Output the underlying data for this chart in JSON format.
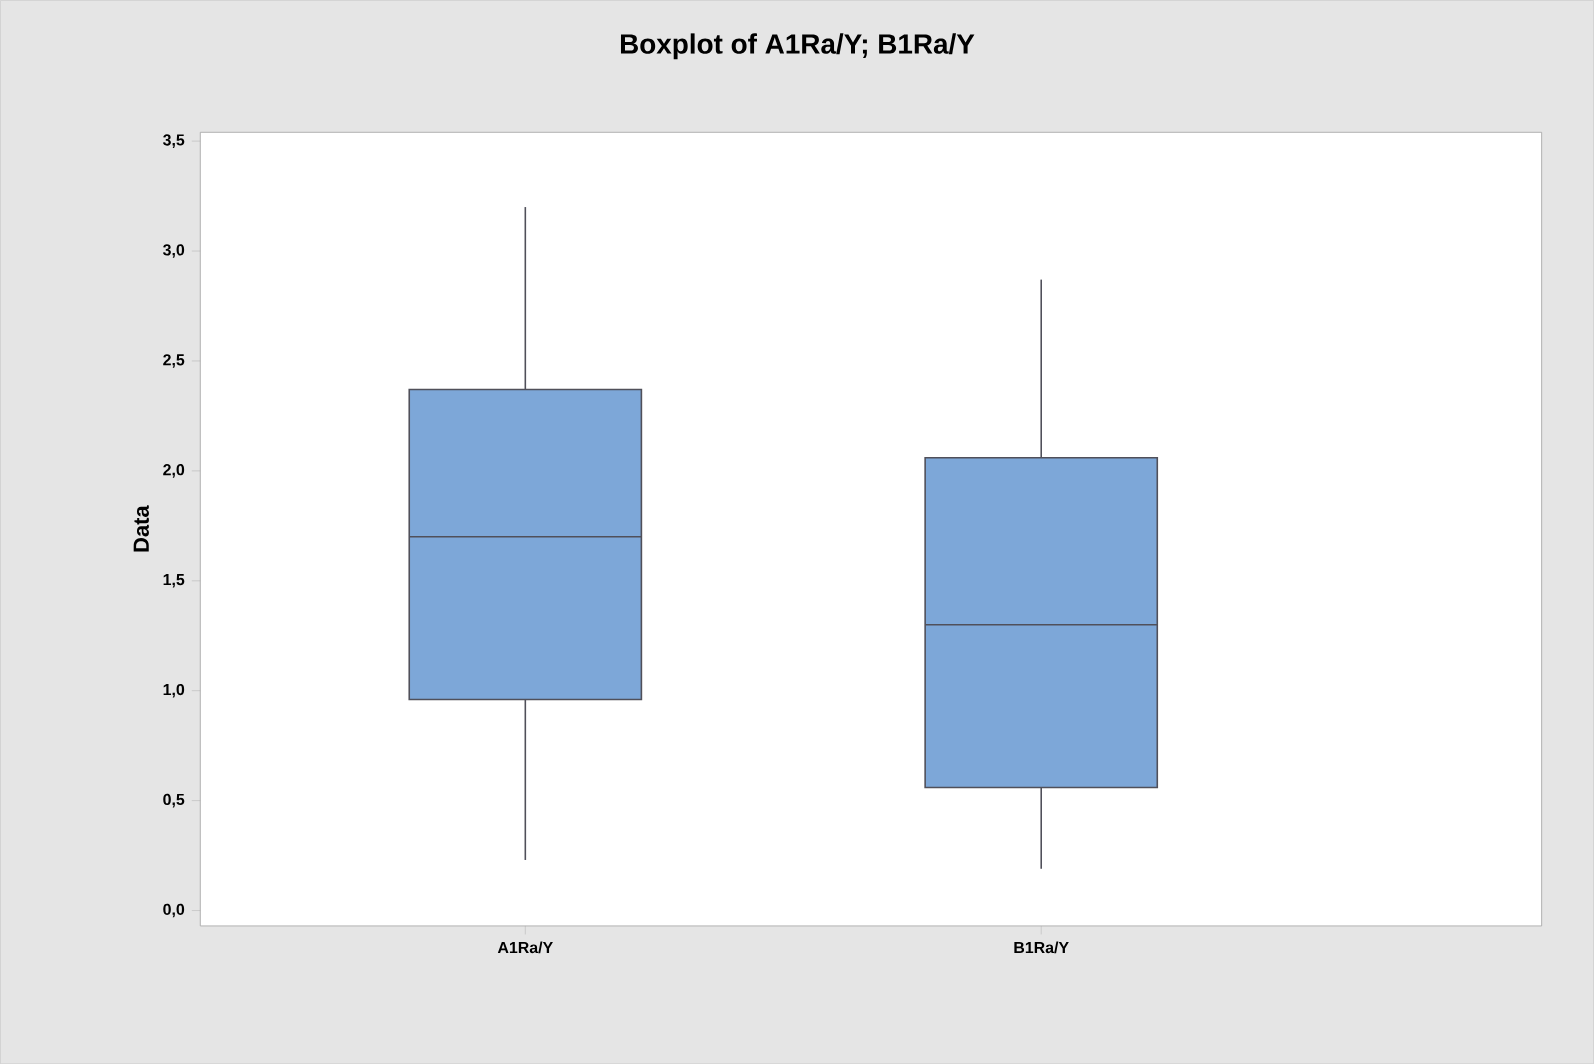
{
  "chart_data": {
    "type": "box",
    "title": "Boxplot of A1Ra/Y; B1Ra/Y",
    "ylabel": "Data",
    "categories": [
      "A1Ra/Y",
      "B1Ra/Y"
    ],
    "color": "#7da7d8",
    "boxes": [
      {
        "low": 0.23,
        "q1": 0.96,
        "median": 1.7,
        "q3": 2.37,
        "high": 3.2
      },
      {
        "low": 0.19,
        "q1": 0.56,
        "median": 1.3,
        "q3": 2.06,
        "high": 2.87
      }
    ],
    "ylim": [
      -0.07,
      3.54
    ],
    "yticks": [
      {
        "value": 0,
        "label": "0,0"
      },
      {
        "value": 0.5,
        "label": "0,5"
      },
      {
        "value": 1,
        "label": "1,0"
      },
      {
        "value": 1.5,
        "label": "1,5"
      },
      {
        "value": 2,
        "label": "2,0"
      },
      {
        "value": 2.5,
        "label": "2,5"
      },
      {
        "value": 3,
        "label": "3,0"
      },
      {
        "value": 3.5,
        "label": "3,5"
      }
    ]
  }
}
